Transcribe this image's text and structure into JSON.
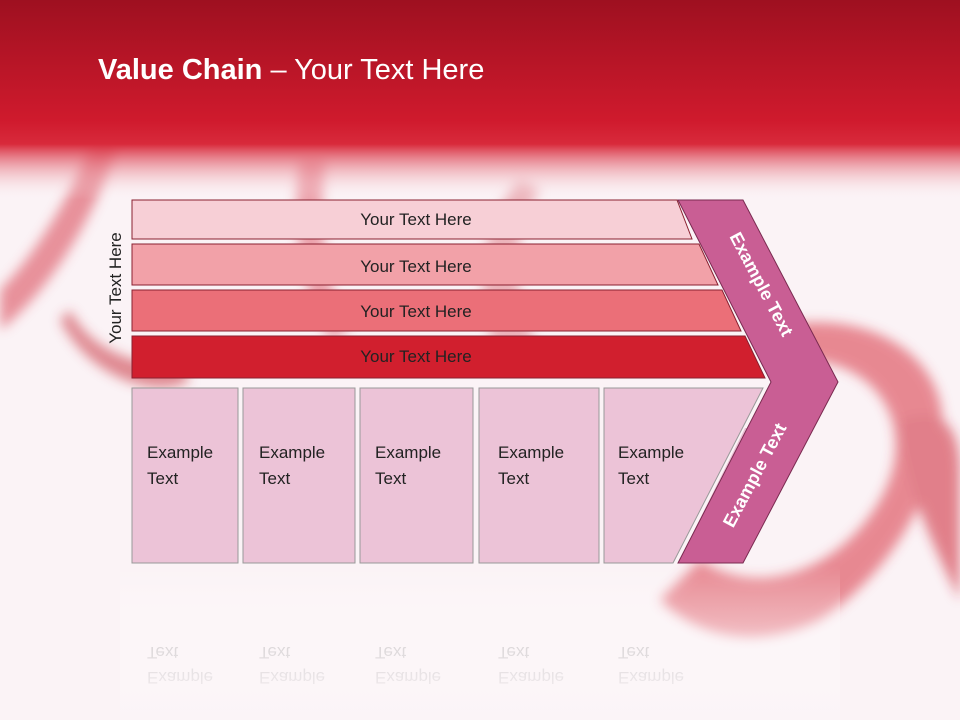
{
  "title": {
    "bold": "Value Chain",
    "rest": " – Your Text Here"
  },
  "side_label": "Your Text Here",
  "bars": [
    {
      "label": "Your Text Here",
      "color": "#f7cfd6"
    },
    {
      "label": "Your Text Here",
      "color": "#f2a1a8"
    },
    {
      "label": "Your Text Here",
      "color": "#eb6f78"
    },
    {
      "label": "Your Text Here",
      "color": "#d11f2e"
    }
  ],
  "boxes": [
    {
      "line1": "Example",
      "line2": "Text"
    },
    {
      "line1": "Example",
      "line2": "Text"
    },
    {
      "line1": "Example",
      "line2": "Text"
    },
    {
      "line1": "Example",
      "line2": "Text"
    },
    {
      "line1": "Example",
      "line2": "Text"
    }
  ],
  "chevron": {
    "upper": "Example Text",
    "lower": "Example Text",
    "color": "#c95e94"
  },
  "colors": {
    "header": "#c8172a",
    "box": "#ecc3d7"
  }
}
